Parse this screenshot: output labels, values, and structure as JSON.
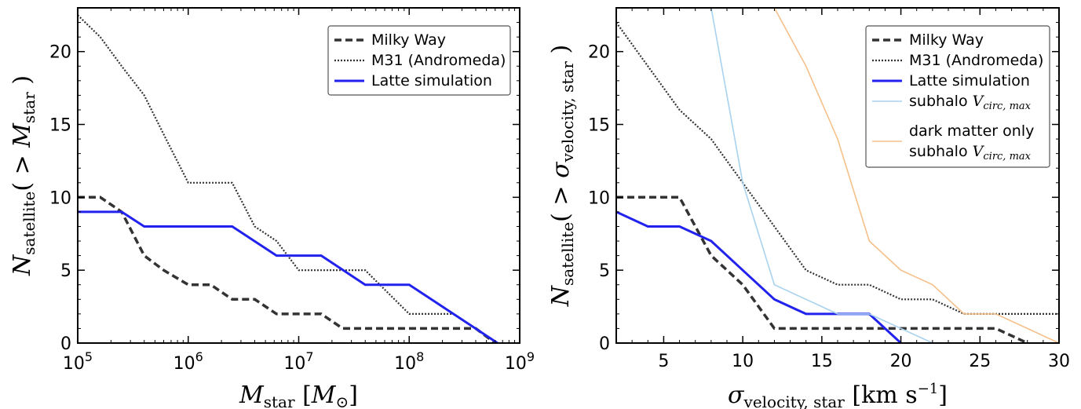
{
  "chart_data": [
    {
      "type": "line",
      "xscale": "log",
      "xlim": [
        100000,
        1000000000
      ],
      "ylim": [
        0,
        23
      ],
      "xticks": [
        {
          "value": 100000,
          "base": "10",
          "exp": "5"
        },
        {
          "value": 1000000,
          "base": "10",
          "exp": "6"
        },
        {
          "value": 10000000,
          "base": "10",
          "exp": "7"
        },
        {
          "value": 100000000,
          "base": "10",
          "exp": "8"
        },
        {
          "value": 1000000000,
          "base": "10",
          "exp": "9"
        }
      ],
      "yticks": [
        "0",
        "5",
        "10",
        "15",
        "20"
      ],
      "xlabel": {
        "main": "M",
        "sub": "star",
        "unit_main": "M",
        "unit_sub": "⊙"
      },
      "ylabel": {
        "main": "N",
        "sub": "satellite",
        "inner_main": "M",
        "inner_sub": "star"
      },
      "legend": {
        "placement": "top-right"
      },
      "series": [
        {
          "name": "Milky Way",
          "color": "#333333",
          "style": "dashed",
          "points": [
            [
              100000,
              10
            ],
            [
              160000,
              10
            ],
            [
              200000,
              9.5
            ],
            [
              250000,
              9
            ],
            [
              400000,
              6
            ],
            [
              600000,
              5
            ],
            [
              1000000,
              4
            ],
            [
              1600000,
              4
            ],
            [
              2500000,
              3
            ],
            [
              4000000,
              3
            ],
            [
              6300000,
              2
            ],
            [
              10000000,
              2
            ],
            [
              16000000,
              2
            ],
            [
              25000000,
              1
            ],
            [
              40000000,
              1
            ],
            [
              100000000,
              1
            ],
            [
              160000000,
              1
            ],
            [
              400000000,
              1
            ],
            [
              600000000,
              0
            ]
          ]
        },
        {
          "name": "M31 (Andromeda)",
          "color": "#333333",
          "style": "dotted",
          "points": [
            [
              100000,
              22.5
            ],
            [
              160000,
              21
            ],
            [
              250000,
              19
            ],
            [
              400000,
              17
            ],
            [
              630000,
              14
            ],
            [
              1000000,
              11
            ],
            [
              2500000,
              11
            ],
            [
              4000000,
              8
            ],
            [
              6300000,
              7
            ],
            [
              10000000,
              5
            ],
            [
              40000000,
              5
            ],
            [
              100000000,
              2
            ],
            [
              250000000,
              2
            ],
            [
              400000000,
              1
            ],
            [
              630000000,
              0
            ]
          ]
        },
        {
          "name": "Latte simulation",
          "color": "#2222ee",
          "style": "solid",
          "points": [
            [
              100000,
              9
            ],
            [
              250000,
              9
            ],
            [
              400000,
              8
            ],
            [
              2500000,
              8
            ],
            [
              6300000,
              6
            ],
            [
              16000000,
              6
            ],
            [
              40000000,
              4
            ],
            [
              100000000,
              4
            ],
            [
              630000000,
              0
            ]
          ]
        }
      ]
    },
    {
      "type": "line",
      "xscale": "linear",
      "xlim": [
        2,
        30
      ],
      "ylim": [
        0,
        23
      ],
      "xticks": [
        "5",
        "10",
        "15",
        "20",
        "25",
        "30"
      ],
      "yticks": [
        "0",
        "5",
        "10",
        "15",
        "20"
      ],
      "xlabel": {
        "main": "σ",
        "sub": "velocity, star",
        "unit": "km s",
        "unit_exp": "−1"
      },
      "ylabel": {
        "main": "N",
        "sub": "satellite",
        "inner_main": "σ",
        "inner_sub": "velocity, star"
      },
      "legend": {
        "placement": "top-right"
      },
      "series": [
        {
          "name": "Milky Way",
          "color": "#333333",
          "style": "dashed",
          "points": [
            [
              2,
              10
            ],
            [
              6,
              10
            ],
            [
              8,
              6
            ],
            [
              10,
              4
            ],
            [
              12,
              1
            ],
            [
              26,
              1
            ],
            [
              28,
              0
            ]
          ]
        },
        {
          "name": "M31 (Andromeda)",
          "color": "#333333",
          "style": "dotted",
          "points": [
            [
              2,
              22
            ],
            [
              4,
              19
            ],
            [
              6,
              16
            ],
            [
              8,
              14
            ],
            [
              10,
              11
            ],
            [
              12,
              8
            ],
            [
              14,
              5
            ],
            [
              16,
              4
            ],
            [
              18,
              4
            ],
            [
              20,
              3
            ],
            [
              22,
              3
            ],
            [
              24,
              2
            ],
            [
              30,
              2
            ]
          ]
        },
        {
          "name": "Latte simulation",
          "color": "#2222ee",
          "style": "solid",
          "points": [
            [
              2,
              9
            ],
            [
              4,
              8
            ],
            [
              6,
              8
            ],
            [
              8,
              7
            ],
            [
              10,
              5
            ],
            [
              12,
              3
            ],
            [
              14,
              2
            ],
            [
              18,
              2
            ],
            [
              20,
              0
            ]
          ]
        },
        {
          "name": "subhalo",
          "name_math": "V",
          "name_sub": "circ, max",
          "color": "#a8d2ee",
          "style": "solid",
          "points": [
            [
              8,
              23
            ],
            [
              10,
              11
            ],
            [
              12,
              4
            ],
            [
              14,
              3
            ],
            [
              16,
              2
            ],
            [
              18,
              2
            ],
            [
              20,
              1
            ],
            [
              22,
              0
            ]
          ]
        },
        {
          "name": "dark matter only",
          "name_line2": "subhalo",
          "name_math": "V",
          "name_sub": "circ, max",
          "color": "#f5c08a",
          "style": "solid",
          "points": [
            [
              12,
              23
            ],
            [
              14,
              19
            ],
            [
              16,
              14
            ],
            [
              18,
              7
            ],
            [
              20,
              5
            ],
            [
              22,
              4
            ],
            [
              24,
              2
            ],
            [
              26,
              2
            ],
            [
              28,
              1
            ],
            [
              30,
              0
            ]
          ]
        }
      ]
    }
  ]
}
